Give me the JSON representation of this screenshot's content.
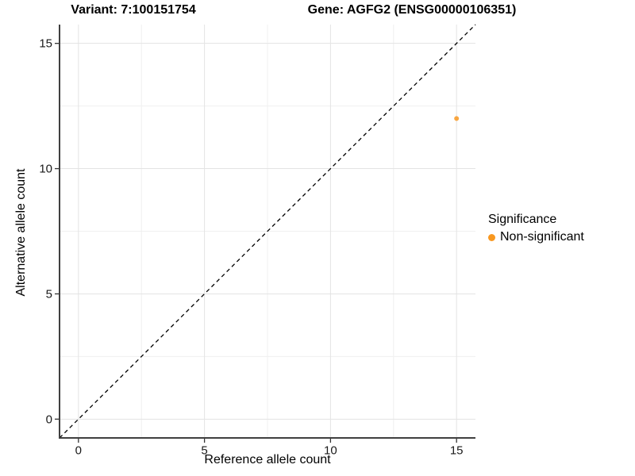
{
  "titles": {
    "variant": "Variant: 7:100151754",
    "gene": "Gene: AGFG2 (ENSG00000106351)"
  },
  "chart_data": {
    "type": "scatter",
    "xlabel": "Reference allele count",
    "ylabel": "Alternative allele count",
    "xlim": [
      -0.75,
      15.75
    ],
    "ylim": [
      -0.75,
      15.75
    ],
    "x_ticks": [
      0,
      5,
      10,
      15
    ],
    "y_ticks": [
      0,
      5,
      10,
      15
    ],
    "minor_ticks": [
      2.5,
      7.5,
      12.5
    ],
    "grid": true,
    "abline": {
      "slope": 1,
      "intercept": 0,
      "style": "dashed"
    },
    "series": [
      {
        "name": "Non-significant",
        "points": [
          {
            "x": 15,
            "y": 12
          }
        ]
      }
    ],
    "legend": {
      "title": "Significance",
      "position": "right",
      "items": [
        {
          "label": "Non-significant",
          "color": "#F89821"
        }
      ]
    },
    "colors": {
      "point": "#F89821",
      "grid_major": "#E3E3E3",
      "grid_minor": "#F0F0F0",
      "axis_line": "#404040",
      "tick_mark": "#333333",
      "tick_label": "#1A1A1A",
      "abline": "#000000",
      "background": "#FFFFFF"
    }
  }
}
